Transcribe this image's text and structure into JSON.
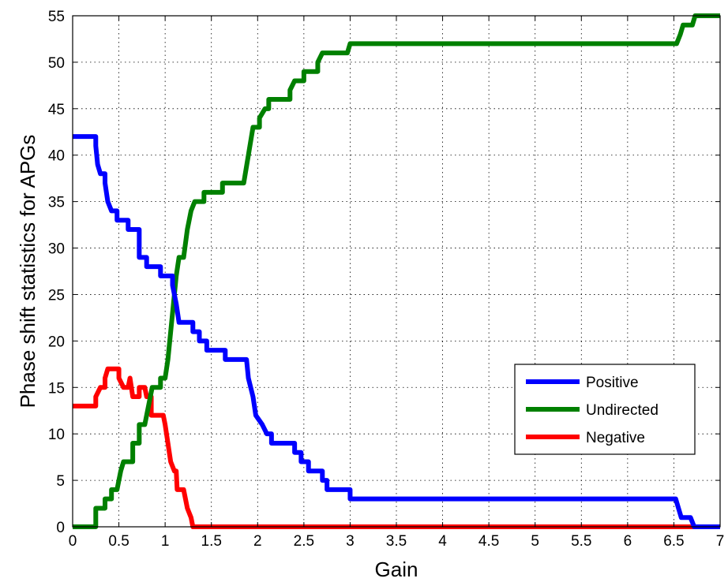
{
  "chart_data": {
    "type": "line",
    "title": "",
    "xlabel": "Gain",
    "ylabel": "Phase shift statistics for APGs",
    "xlim": [
      0,
      7
    ],
    "ylim": [
      0,
      55
    ],
    "xticks": [
      0,
      0.5,
      1,
      1.5,
      2,
      2.5,
      3,
      3.5,
      4,
      4.5,
      5,
      5.5,
      6,
      6.5,
      7
    ],
    "yticks": [
      0,
      5,
      10,
      15,
      20,
      25,
      30,
      35,
      40,
      45,
      50,
      55
    ],
    "grid": true,
    "legend_position": "lower-right",
    "series": [
      {
        "name": "Positive",
        "color": "#0000ff",
        "points": [
          [
            0,
            42
          ],
          [
            0.25,
            42
          ],
          [
            0.25,
            41
          ],
          [
            0.27,
            39
          ],
          [
            0.3,
            38
          ],
          [
            0.35,
            38
          ],
          [
            0.35,
            37
          ],
          [
            0.38,
            35
          ],
          [
            0.42,
            34
          ],
          [
            0.48,
            34
          ],
          [
            0.48,
            33
          ],
          [
            0.6,
            33
          ],
          [
            0.6,
            32
          ],
          [
            0.72,
            32
          ],
          [
            0.72,
            29
          ],
          [
            0.8,
            29
          ],
          [
            0.8,
            28
          ],
          [
            0.95,
            28
          ],
          [
            0.95,
            27
          ],
          [
            1.08,
            27
          ],
          [
            1.08,
            26
          ],
          [
            1.12,
            24
          ],
          [
            1.15,
            22
          ],
          [
            1.3,
            22
          ],
          [
            1.3,
            21
          ],
          [
            1.37,
            21
          ],
          [
            1.37,
            20
          ],
          [
            1.45,
            20
          ],
          [
            1.45,
            19
          ],
          [
            1.65,
            19
          ],
          [
            1.65,
            18
          ],
          [
            1.88,
            18
          ],
          [
            1.9,
            16
          ],
          [
            1.95,
            14
          ],
          [
            1.98,
            12
          ],
          [
            2.05,
            11
          ],
          [
            2.1,
            10
          ],
          [
            2.15,
            10
          ],
          [
            2.15,
            9
          ],
          [
            2.4,
            9
          ],
          [
            2.4,
            8
          ],
          [
            2.47,
            8
          ],
          [
            2.47,
            7
          ],
          [
            2.55,
            7
          ],
          [
            2.55,
            6
          ],
          [
            2.7,
            6
          ],
          [
            2.7,
            5
          ],
          [
            2.75,
            5
          ],
          [
            2.75,
            4
          ],
          [
            3,
            4
          ],
          [
            3,
            3
          ],
          [
            6.52,
            3
          ],
          [
            6.55,
            2
          ],
          [
            6.58,
            1
          ],
          [
            6.68,
            1
          ],
          [
            6.72,
            0
          ],
          [
            7,
            0
          ]
        ]
      },
      {
        "name": "Undirected",
        "color": "#008000",
        "points": [
          [
            0,
            0
          ],
          [
            0.25,
            0
          ],
          [
            0.25,
            2
          ],
          [
            0.35,
            2
          ],
          [
            0.35,
            3
          ],
          [
            0.42,
            3
          ],
          [
            0.42,
            4
          ],
          [
            0.48,
            4
          ],
          [
            0.52,
            6
          ],
          [
            0.55,
            7
          ],
          [
            0.65,
            7
          ],
          [
            0.65,
            9
          ],
          [
            0.72,
            9
          ],
          [
            0.72,
            11
          ],
          [
            0.78,
            11
          ],
          [
            0.82,
            13
          ],
          [
            0.86,
            15
          ],
          [
            0.95,
            15
          ],
          [
            0.95,
            16
          ],
          [
            1.0,
            16
          ],
          [
            1.03,
            18
          ],
          [
            1.06,
            21
          ],
          [
            1.09,
            24
          ],
          [
            1.12,
            27
          ],
          [
            1.15,
            29
          ],
          [
            1.2,
            29
          ],
          [
            1.24,
            32
          ],
          [
            1.28,
            34
          ],
          [
            1.32,
            35
          ],
          [
            1.42,
            35
          ],
          [
            1.42,
            36
          ],
          [
            1.62,
            36
          ],
          [
            1.62,
            37
          ],
          [
            1.85,
            37
          ],
          [
            1.9,
            40
          ],
          [
            1.95,
            43
          ],
          [
            2.02,
            43
          ],
          [
            2.02,
            44
          ],
          [
            2.08,
            45
          ],
          [
            2.12,
            45
          ],
          [
            2.12,
            46
          ],
          [
            2.35,
            46
          ],
          [
            2.35,
            47
          ],
          [
            2.4,
            48
          ],
          [
            2.5,
            48
          ],
          [
            2.5,
            49
          ],
          [
            2.65,
            49
          ],
          [
            2.65,
            50
          ],
          [
            2.7,
            51
          ],
          [
            2.97,
            51
          ],
          [
            3.0,
            52
          ],
          [
            6.53,
            52
          ],
          [
            6.57,
            53
          ],
          [
            6.6,
            54
          ],
          [
            6.7,
            54
          ],
          [
            6.73,
            55
          ],
          [
            7,
            55
          ]
        ]
      },
      {
        "name": "Negative",
        "color": "#ff0000",
        "points": [
          [
            0,
            13
          ],
          [
            0.25,
            13
          ],
          [
            0.25,
            14
          ],
          [
            0.3,
            15
          ],
          [
            0.35,
            15
          ],
          [
            0.35,
            16
          ],
          [
            0.38,
            17
          ],
          [
            0.5,
            17
          ],
          [
            0.5,
            16
          ],
          [
            0.55,
            15
          ],
          [
            0.6,
            15
          ],
          [
            0.62,
            16
          ],
          [
            0.65,
            14
          ],
          [
            0.72,
            14
          ],
          [
            0.72,
            15
          ],
          [
            0.78,
            15
          ],
          [
            0.8,
            14
          ],
          [
            0.85,
            14
          ],
          [
            0.85,
            12
          ],
          [
            0.98,
            12
          ],
          [
            1.0,
            11
          ],
          [
            1.03,
            9
          ],
          [
            1.06,
            7
          ],
          [
            1.1,
            6
          ],
          [
            1.12,
            6
          ],
          [
            1.13,
            4
          ],
          [
            1.2,
            4
          ],
          [
            1.24,
            2
          ],
          [
            1.28,
            1
          ],
          [
            1.3,
            0
          ],
          [
            7,
            0
          ]
        ]
      }
    ]
  }
}
